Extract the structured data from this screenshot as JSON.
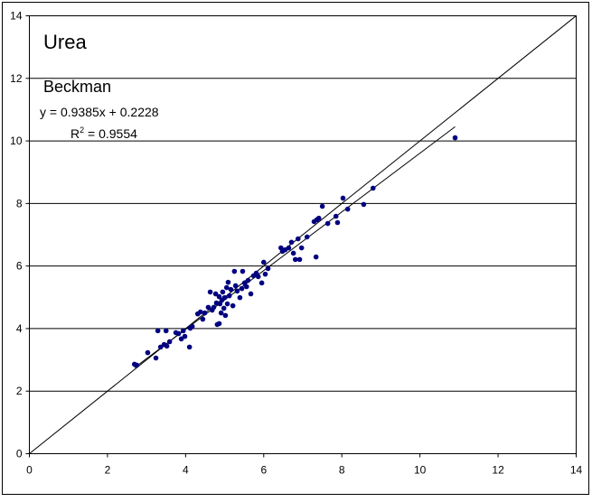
{
  "chart_data": {
    "type": "scatter",
    "title": "Urea",
    "subtitle": "Beckman",
    "annotations": {
      "equation": "y = 0.9385x + 0.2228",
      "r_squared": {
        "base": "R",
        "exponent": "2",
        "rest": " = 0.9554"
      }
    },
    "trendline": {
      "slope": 0.9385,
      "intercept": 0.2228
    },
    "color": "#000080",
    "grid": true,
    "xlim": [
      0,
      14
    ],
    "ylim": [
      0,
      14
    ],
    "xticks": [
      0,
      2,
      4,
      6,
      8,
      10,
      12,
      14
    ],
    "yticks": [
      0,
      2,
      4,
      6,
      8,
      10,
      12,
      14
    ],
    "x": [
      2.69,
      2.75,
      3.03,
      3.24,
      3.29,
      3.36,
      3.45,
      3.5,
      3.52,
      3.59,
      3.75,
      3.82,
      3.89,
      3.94,
      3.98,
      4.1,
      4.12,
      4.17,
      4.31,
      4.38,
      4.44,
      4.49,
      4.58,
      4.63,
      4.68,
      4.72,
      4.77,
      4.79,
      4.81,
      4.86,
      4.86,
      4.88,
      4.91,
      4.93,
      4.95,
      4.98,
      5.0,
      5.02,
      5.05,
      5.07,
      5.09,
      5.12,
      5.16,
      5.21,
      5.25,
      5.28,
      5.32,
      5.39,
      5.44,
      5.46,
      5.51,
      5.56,
      5.6,
      5.67,
      5.74,
      5.81,
      5.86,
      5.95,
      6.0,
      6.04,
      6.11,
      6.44,
      6.48,
      6.55,
      6.64,
      6.71,
      6.76,
      6.81,
      6.88,
      6.92,
      6.97,
      7.11,
      7.29,
      7.34,
      7.36,
      7.41,
      7.5,
      7.64,
      7.85,
      7.89,
      8.03,
      8.15,
      8.56,
      8.8,
      10.9
    ],
    "values": [
      2.86,
      2.83,
      3.23,
      3.06,
      3.93,
      3.41,
      3.49,
      3.93,
      3.44,
      3.58,
      3.87,
      3.84,
      3.67,
      3.93,
      3.75,
      3.41,
      4.01,
      4.07,
      4.47,
      4.53,
      4.3,
      4.5,
      4.68,
      5.17,
      4.59,
      4.68,
      5.11,
      4.82,
      4.13,
      4.16,
      5.02,
      4.79,
      4.5,
      4.91,
      5.17,
      4.65,
      4.99,
      4.42,
      5.31,
      4.79,
      5.48,
      5.05,
      5.25,
      4.73,
      5.83,
      5.37,
      5.2,
      4.99,
      5.28,
      5.83,
      5.46,
      5.34,
      5.54,
      5.11,
      5.69,
      5.77,
      5.66,
      5.46,
      6.12,
      5.74,
      5.92,
      6.58,
      6.47,
      6.52,
      6.58,
      6.76,
      6.41,
      6.21,
      6.87,
      6.21,
      6.58,
      6.93,
      7.42,
      6.29,
      7.48,
      7.53,
      7.91,
      7.36,
      7.59,
      7.39,
      8.17,
      7.82,
      7.97,
      8.49,
      10.1
    ]
  }
}
